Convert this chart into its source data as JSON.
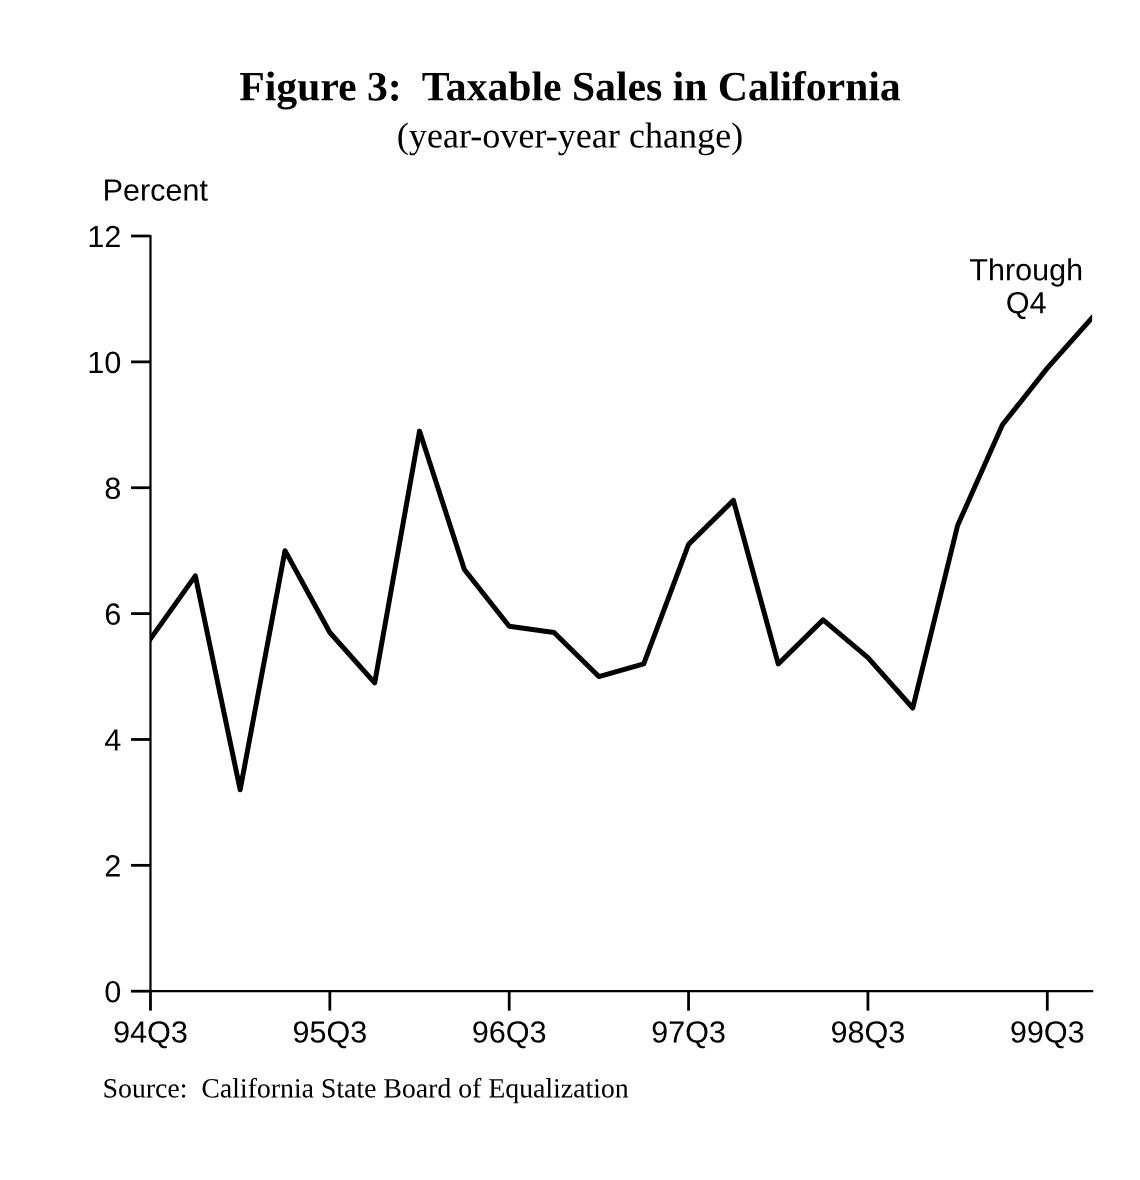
{
  "chart_data": {
    "type": "line",
    "title": "Figure 3:  Taxable Sales in California",
    "subtitle": "(year-over-year change)",
    "ylabel": "Percent",
    "categories": [
      "94Q3",
      null,
      null,
      null,
      "95Q3",
      null,
      null,
      null,
      "96Q3",
      null,
      null,
      null,
      "97Q3",
      null,
      null,
      null,
      "98Q3",
      null,
      null,
      null,
      "99Q3",
      null
    ],
    "series": [
      {
        "color": "#000000",
        "values": [
          5.6,
          6.6,
          3.2,
          7.0,
          5.7,
          4.9,
          8.9,
          6.7,
          5.8,
          5.7,
          5.0,
          5.2,
          7.1,
          7.8,
          5.2,
          5.9,
          5.3,
          4.5,
          7.4,
          9.0,
          9.9,
          10.7
        ]
      }
    ],
    "ylim": [
      0,
      12
    ],
    "yticks": [
      0,
      2,
      4,
      6,
      8,
      10,
      12
    ],
    "grid": false,
    "marker": "none",
    "line_style": "solid",
    "annotations": [
      "Through\nQ4",
      "Source:  California State Board of Equalization"
    ]
  }
}
